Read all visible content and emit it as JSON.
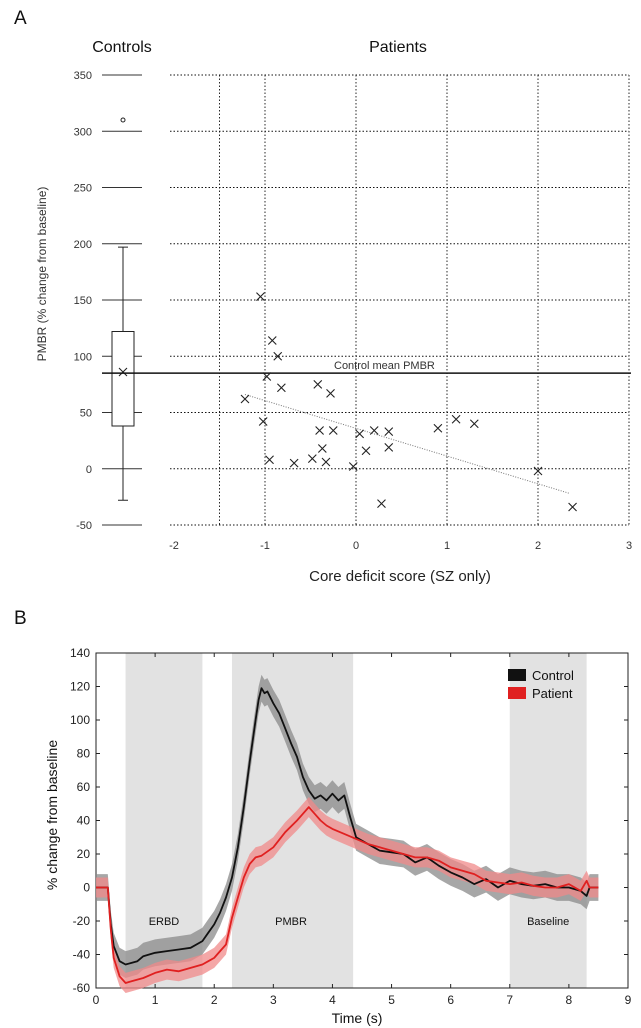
{
  "chart_data": [
    {
      "panel": "A",
      "type": "scatter",
      "left_title": "Controls",
      "right_title": "Patients",
      "ylabel": "PMBR (% change from baseline)",
      "xlabel": "Core deficit score (SZ only)",
      "ylim": [
        -50,
        350
      ],
      "yticks": [
        -50,
        0,
        50,
        100,
        150,
        200,
        250,
        300,
        350
      ],
      "xlim": [
        -2,
        3
      ],
      "xticks": [
        -2,
        -1,
        0,
        1,
        2,
        3
      ],
      "grid": true,
      "controls_boxplot": {
        "whisker_low": -28,
        "q1": 38,
        "median": 85,
        "mean": 86,
        "q3": 122,
        "whisker_high": 197,
        "outliers": [
          310
        ]
      },
      "control_mean_line": {
        "value": 85,
        "label": "Control mean PMBR"
      },
      "patients": [
        {
          "x": -1.22,
          "y": 62
        },
        {
          "x": -1.05,
          "y": 153
        },
        {
          "x": -1.02,
          "y": 42
        },
        {
          "x": -0.98,
          "y": 82
        },
        {
          "x": -0.95,
          "y": 8
        },
        {
          "x": -0.92,
          "y": 114
        },
        {
          "x": -0.86,
          "y": 100
        },
        {
          "x": -0.82,
          "y": 72
        },
        {
          "x": -0.68,
          "y": 5
        },
        {
          "x": -0.48,
          "y": 9
        },
        {
          "x": -0.42,
          "y": 75
        },
        {
          "x": -0.4,
          "y": 34
        },
        {
          "x": -0.37,
          "y": 18
        },
        {
          "x": -0.33,
          "y": 6
        },
        {
          "x": -0.28,
          "y": 67
        },
        {
          "x": -0.25,
          "y": 34
        },
        {
          "x": -0.03,
          "y": 2
        },
        {
          "x": 0.04,
          "y": 31
        },
        {
          "x": 0.11,
          "y": 16
        },
        {
          "x": 0.2,
          "y": 34
        },
        {
          "x": 0.28,
          "y": -31
        },
        {
          "x": 0.36,
          "y": 33
        },
        {
          "x": 0.36,
          "y": 19
        },
        {
          "x": 0.9,
          "y": 36
        },
        {
          "x": 1.1,
          "y": 44
        },
        {
          "x": 1.3,
          "y": 40
        },
        {
          "x": 2.0,
          "y": -2
        },
        {
          "x": 2.38,
          "y": -34
        }
      ],
      "trendline": [
        {
          "x": -1.22,
          "y": 66
        },
        {
          "x": 2.35,
          "y": -22
        }
      ]
    },
    {
      "panel": "B",
      "type": "line",
      "xlabel": "Time (s)",
      "ylabel": "% change from baseline",
      "xlim": [
        0,
        9
      ],
      "xticks": [
        0,
        1,
        2,
        3,
        4,
        5,
        6,
        7,
        8,
        9
      ],
      "ylim": [
        -60,
        140
      ],
      "yticks": [
        -60,
        -40,
        -20,
        0,
        20,
        40,
        60,
        80,
        100,
        120,
        140
      ],
      "regions": [
        {
          "label": "ERBD",
          "x0": 0.5,
          "x1": 1.8
        },
        {
          "label": "PMBR",
          "x0": 2.3,
          "x1": 4.35
        },
        {
          "label": "Baseline",
          "x0": 7.0,
          "x1": 8.3
        }
      ],
      "legend_position": "top-right",
      "series": [
        {
          "name": "Control",
          "color": "#111111",
          "band_color": "#8a8a8a",
          "x": [
            0,
            0.2,
            0.25,
            0.3,
            0.4,
            0.5,
            0.6,
            0.7,
            0.8,
            0.9,
            1.0,
            1.2,
            1.4,
            1.6,
            1.8,
            1.9,
            2.0,
            2.1,
            2.2,
            2.3,
            2.4,
            2.5,
            2.6,
            2.7,
            2.75,
            2.8,
            2.85,
            2.9,
            3.0,
            3.1,
            3.2,
            3.3,
            3.4,
            3.5,
            3.6,
            3.7,
            3.8,
            3.9,
            4.0,
            4.1,
            4.2,
            4.3,
            4.4,
            4.6,
            4.8,
            5.0,
            5.2,
            5.4,
            5.6,
            5.8,
            6.0,
            6.2,
            6.4,
            6.6,
            6.8,
            7.0,
            7.2,
            7.4,
            7.6,
            7.8,
            8.0,
            8.2,
            8.3,
            8.35,
            8.5
          ],
          "y": [
            0,
            0,
            -22,
            -35,
            -44,
            -46,
            -45,
            -44,
            -41,
            -40,
            -39,
            -38,
            -37,
            -36,
            -32,
            -27,
            -22,
            -15,
            -6,
            6,
            24,
            48,
            75,
            100,
            112,
            119,
            116,
            117,
            110,
            104,
            95,
            86,
            78,
            66,
            58,
            53,
            55,
            52,
            56,
            52,
            55,
            42,
            30,
            26,
            22,
            21,
            20,
            15,
            18,
            13,
            9,
            6,
            2,
            5,
            0,
            4,
            2,
            1,
            2,
            0,
            0,
            -2,
            -5,
            0,
            0
          ],
          "band": 8
        },
        {
          "name": "Patient",
          "color": "#e02020",
          "band_color": "#f08a8a",
          "x": [
            0,
            0.2,
            0.25,
            0.3,
            0.4,
            0.5,
            0.6,
            0.8,
            1.0,
            1.2,
            1.4,
            1.6,
            1.8,
            1.9,
            2.0,
            2.1,
            2.2,
            2.3,
            2.4,
            2.5,
            2.6,
            2.7,
            2.8,
            3.0,
            3.2,
            3.4,
            3.5,
            3.6,
            3.7,
            3.8,
            3.9,
            4.0,
            4.2,
            4.4,
            4.6,
            4.8,
            5.0,
            5.2,
            5.4,
            5.6,
            5.8,
            6.0,
            6.2,
            6.4,
            6.6,
            6.8,
            7.0,
            7.2,
            7.4,
            7.6,
            7.8,
            8.0,
            8.2,
            8.3,
            8.35,
            8.5
          ],
          "y": [
            0,
            0,
            -25,
            -42,
            -53,
            -57,
            -56,
            -54,
            -51,
            -49,
            -50,
            -48,
            -46,
            -44,
            -42,
            -38,
            -34,
            -18,
            -6,
            6,
            14,
            18,
            19,
            24,
            33,
            40,
            44,
            48,
            44,
            40,
            37,
            35,
            32,
            29,
            26,
            24,
            22,
            20,
            18,
            18,
            16,
            12,
            10,
            8,
            4,
            3,
            2,
            3,
            1,
            0,
            0,
            2,
            -2,
            4,
            0,
            0
          ],
          "band": 6
        }
      ]
    }
  ],
  "labels": {
    "panelA": "A",
    "panelB": "B"
  }
}
